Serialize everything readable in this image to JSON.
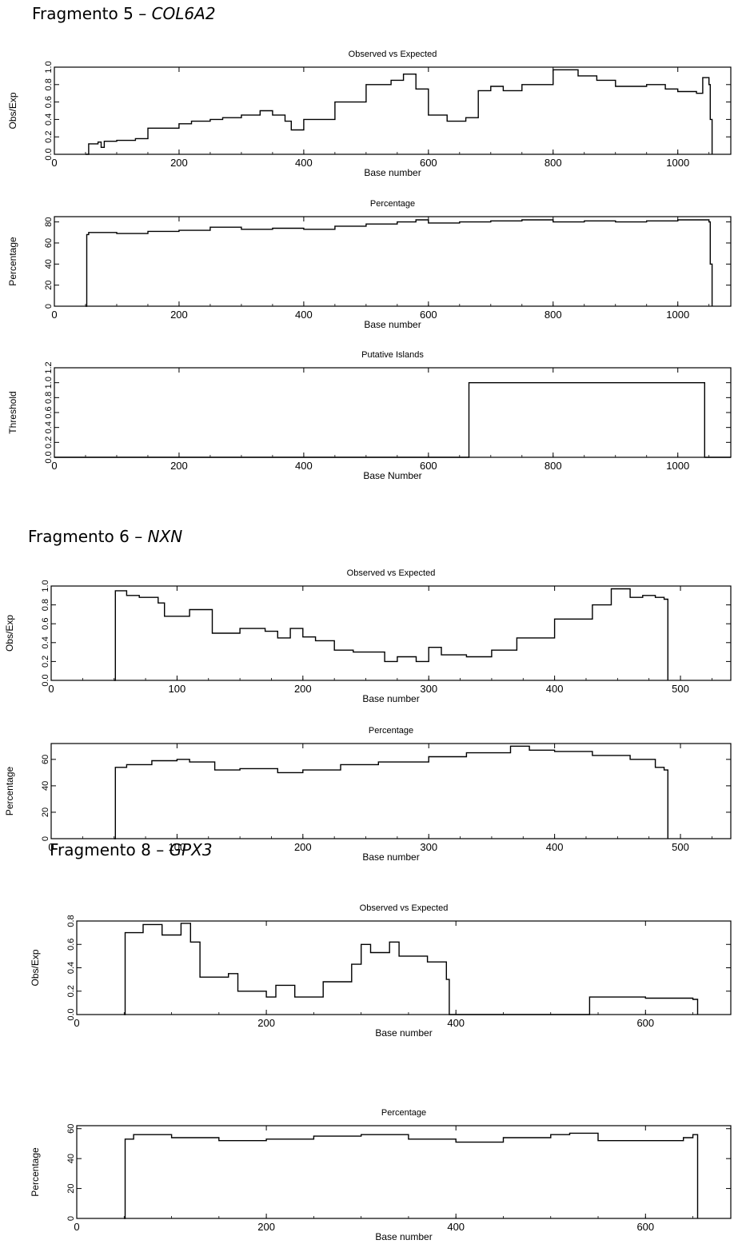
{
  "sections": [
    {
      "prefix": "Fragmento 5 – ",
      "gene": "COL6A2"
    },
    {
      "prefix": "Fragmento 6 – ",
      "gene": "NXN"
    },
    {
      "prefix": "Fragmento 8 – ",
      "gene": "GPX3"
    }
  ],
  "chart_data": [
    {
      "type": "line",
      "title": "Observed vs Expected",
      "xlabel": "Base number",
      "ylabel": "Obs/Exp",
      "xlim": [
        0,
        1085
      ],
      "ylim": [
        0,
        1.0
      ],
      "xticks": [
        "0",
        "200",
        "400",
        "600",
        "800",
        "1000"
      ],
      "yticks": [
        "0.0",
        "0.2",
        "0.4",
        "0.6",
        "0.8",
        "1.0"
      ],
      "x": [
        50,
        55,
        70,
        75,
        80,
        100,
        130,
        150,
        170,
        200,
        220,
        250,
        270,
        300,
        330,
        350,
        370,
        380,
        400,
        450,
        500,
        540,
        560,
        580,
        600,
        630,
        660,
        680,
        700,
        720,
        750,
        800,
        840,
        870,
        900,
        950,
        980,
        1000,
        1030,
        1040,
        1050,
        1052,
        1055
      ],
      "y": [
        0,
        0.12,
        0.14,
        0.08,
        0.15,
        0.16,
        0.18,
        0.3,
        0.3,
        0.35,
        0.38,
        0.4,
        0.42,
        0.45,
        0.5,
        0.45,
        0.38,
        0.28,
        0.4,
        0.6,
        0.8,
        0.85,
        0.92,
        0.75,
        0.45,
        0.38,
        0.42,
        0.73,
        0.78,
        0.73,
        0.8,
        0.97,
        0.9,
        0.85,
        0.78,
        0.8,
        0.75,
        0.72,
        0.7,
        0.88,
        0.8,
        0.4,
        0
      ]
    },
    {
      "type": "line",
      "title": "Percentage",
      "xlabel": "Base number",
      "ylabel": "Percentage",
      "xlim": [
        0,
        1085
      ],
      "ylim": [
        0,
        85
      ],
      "xticks": [
        "0",
        "200",
        "400",
        "600",
        "800",
        "1000"
      ],
      "yticks": [
        "0",
        "20",
        "40",
        "60",
        "80"
      ],
      "x": [
        50,
        52,
        55,
        100,
        150,
        200,
        250,
        300,
        350,
        400,
        450,
        500,
        550,
        580,
        600,
        650,
        700,
        750,
        800,
        850,
        900,
        950,
        1000,
        1050,
        1052,
        1055
      ],
      "y": [
        0,
        68,
        70,
        69,
        71,
        72,
        75,
        73,
        74,
        73,
        76,
        78,
        80,
        82,
        79,
        80,
        81,
        82,
        80,
        81,
        80,
        81,
        82,
        80,
        40,
        0
      ]
    },
    {
      "type": "line",
      "title": "Putative Islands",
      "xlabel": "Base Number",
      "ylabel": "Threshold",
      "xlim": [
        0,
        1085
      ],
      "ylim": [
        0,
        1.2
      ],
      "xticks": [
        "0",
        "200",
        "400",
        "600",
        "800",
        "1000"
      ],
      "yticks": [
        "0.0",
        "0.2",
        "0.4",
        "0.6",
        "0.8",
        "1.0",
        "1.2"
      ],
      "x": [
        0,
        665,
        665,
        1043,
        1043,
        1085
      ],
      "y": [
        0,
        0,
        1.0,
        1.0,
        0,
        0
      ]
    },
    {
      "type": "line",
      "title": "Observed vs Expected",
      "xlabel": "Base number",
      "ylabel": "Obs/Exp",
      "xlim": [
        0,
        540
      ],
      "ylim": [
        0,
        1.0
      ],
      "xticks": [
        "0",
        "100",
        "200",
        "300",
        "400",
        "500"
      ],
      "yticks": [
        "0.0",
        "0.2",
        "0.4",
        "0.6",
        "0.8",
        "1.0"
      ],
      "x": [
        50,
        51,
        60,
        70,
        85,
        90,
        110,
        120,
        128,
        150,
        170,
        180,
        190,
        200,
        210,
        225,
        240,
        265,
        275,
        290,
        300,
        310,
        330,
        350,
        370,
        400,
        430,
        445,
        460,
        470,
        480,
        487,
        490
      ],
      "y": [
        0,
        0.95,
        0.9,
        0.88,
        0.82,
        0.68,
        0.75,
        0.75,
        0.5,
        0.55,
        0.52,
        0.45,
        0.55,
        0.46,
        0.42,
        0.32,
        0.3,
        0.2,
        0.25,
        0.2,
        0.35,
        0.27,
        0.25,
        0.32,
        0.45,
        0.65,
        0.8,
        0.97,
        0.88,
        0.9,
        0.88,
        0.86,
        0
      ]
    },
    {
      "type": "line",
      "title": "Percentage",
      "xlabel": "Base number",
      "ylabel": "Percentage",
      "xlim": [
        0,
        540
      ],
      "ylim": [
        0,
        72
      ],
      "xticks": [
        "0",
        "100",
        "200",
        "300",
        "400",
        "500"
      ],
      "yticks": [
        "0",
        "20",
        "40",
        "60"
      ],
      "x": [
        50,
        51,
        60,
        80,
        100,
        110,
        130,
        150,
        180,
        200,
        230,
        260,
        300,
        330,
        365,
        380,
        400,
        430,
        460,
        480,
        487,
        490
      ],
      "y": [
        0,
        54,
        56,
        59,
        60,
        58,
        52,
        53,
        50,
        52,
        56,
        58,
        62,
        65,
        70,
        67,
        66,
        63,
        60,
        54,
        52,
        0
      ]
    },
    {
      "type": "line",
      "title": "Observed vs Expected",
      "xlabel": "Base number",
      "ylabel": "Obs/Exp",
      "xlim": [
        0,
        690
      ],
      "ylim": [
        0,
        0.8
      ],
      "xticks": [
        "0",
        "200",
        "400",
        "600"
      ],
      "yticks": [
        "0.0",
        "0.2",
        "0.4",
        "0.6",
        "0.8"
      ],
      "x": [
        50,
        51,
        70,
        90,
        110,
        120,
        130,
        160,
        170,
        200,
        210,
        230,
        260,
        290,
        300,
        310,
        330,
        340,
        370,
        390,
        393,
        540,
        541,
        560,
        600,
        650,
        655
      ],
      "y": [
        0,
        0.7,
        0.77,
        0.68,
        0.78,
        0.62,
        0.32,
        0.35,
        0.2,
        0.15,
        0.25,
        0.15,
        0.28,
        0.43,
        0.6,
        0.53,
        0.62,
        0.5,
        0.45,
        0.3,
        0,
        0,
        0.15,
        0.15,
        0.14,
        0.13,
        0
      ]
    },
    {
      "type": "line",
      "title": "Percentage",
      "xlabel": "Base number",
      "ylabel": "Percentage",
      "xlim": [
        0,
        690
      ],
      "ylim": [
        0,
        62
      ],
      "xticks": [
        "0",
        "200",
        "400",
        "600"
      ],
      "yticks": [
        "0",
        "20",
        "40",
        "60"
      ],
      "x": [
        50,
        51,
        60,
        100,
        150,
        200,
        250,
        300,
        350,
        400,
        450,
        500,
        520,
        550,
        600,
        640,
        650,
        655
      ],
      "y": [
        0,
        53,
        56,
        54,
        52,
        53,
        55,
        56,
        53,
        51,
        54,
        56,
        57,
        52,
        52,
        54,
        56,
        0
      ]
    }
  ]
}
